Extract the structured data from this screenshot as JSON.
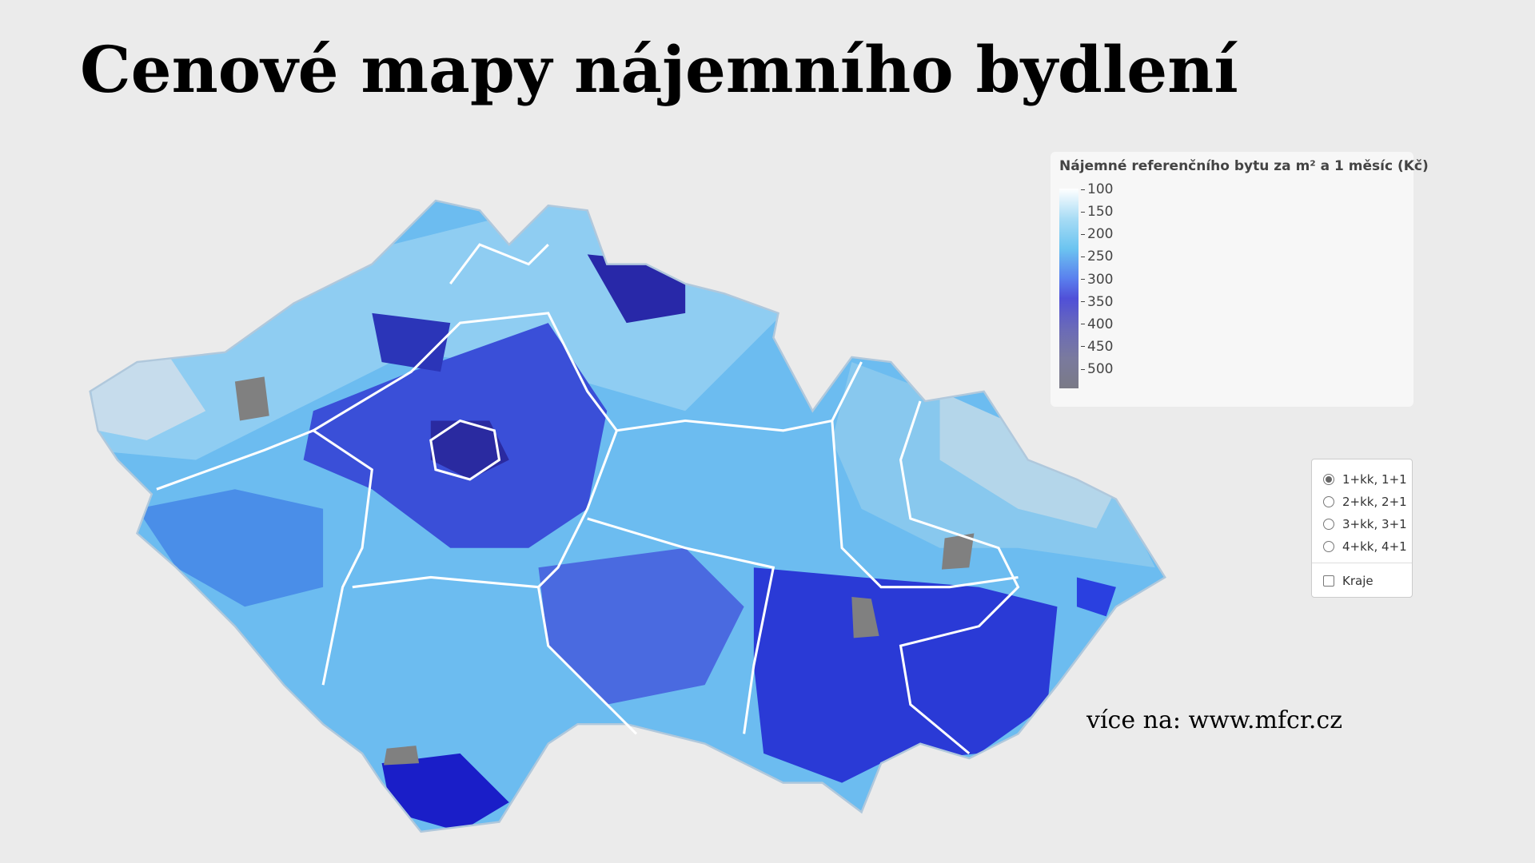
{
  "title": "Cenové mapy nájemního bydlení",
  "legend": {
    "title": "Nájemné referenčního bytu za m² a 1 měsíc (Kč)",
    "ticks": [
      100,
      150,
      200,
      250,
      300,
      350,
      400,
      450,
      500
    ]
  },
  "options": {
    "radios": [
      "1+kk, 1+1",
      "2+kk, 2+1",
      "3+kk, 3+1",
      "4+kk, 4+1"
    ],
    "checkbox": "Kraje"
  },
  "footer": "více na: www.mfcr.cz"
}
